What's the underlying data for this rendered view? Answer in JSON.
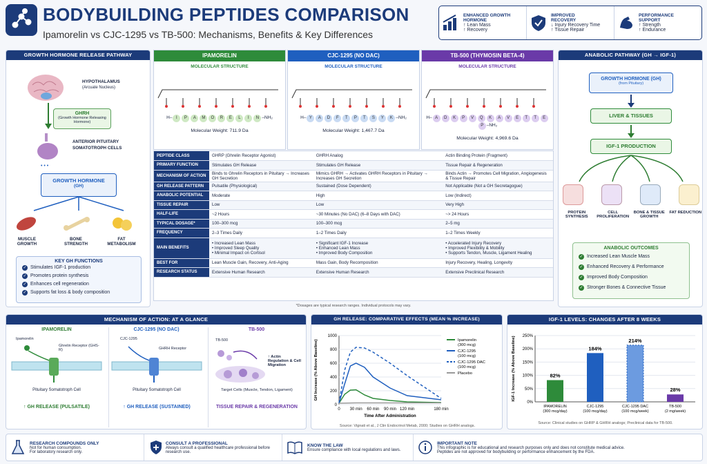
{
  "header": {
    "title": "BODYBUILDING PEPTIDES COMPARISON",
    "subtitle": "Ipamorelin vs CJC-1295 vs TB-500: Mechanisms, Benefits & Key Differences",
    "badges": [
      {
        "title": "ENHANCED GROWTH HORMONE",
        "l1": "↑ Lean Mass",
        "l2": "↑ Recovery"
      },
      {
        "title": "IMPROVED RECOVERY",
        "l1": "↓ Injury Recovery Time",
        "l2": "↑ Tissue Repair"
      },
      {
        "title": "PERFORMANCE SUPPORT",
        "l1": "↑ Strength",
        "l2": "↑ Endurance"
      }
    ]
  },
  "gh_pathway": {
    "title": "GROWTH HORMONE RELEASE PATHWAY",
    "hypothalamus": "HYPOTHALAMUS",
    "hypo_sub": "(Arcuate Nucleus)",
    "ghrh": "GHRH",
    "ghrh_sub": "(Growth Hormone Releasing Hormone)",
    "pituitary": "ANTERIOR PITUITARY SOMATOTROPH CELLS",
    "gh": "GROWTH HORMONE",
    "gh_sub": "(GH)",
    "muscle": "MUSCLE GROWTH",
    "bone": "BONE STRENGTH",
    "fat": "FAT METABOLISM",
    "fn_title": "KEY GH FUNCTIONS",
    "functions": [
      "Stimulates IGF-1 production",
      "Promotes protein synthesis",
      "Enhances cell regeneration",
      "Supports fat loss & body composition"
    ]
  },
  "peptides": [
    {
      "name": "IPAMORELIN",
      "struct_label": "MOLECULAR STRUCTURE",
      "seq": [
        "I",
        "P",
        "A",
        "M",
        "O",
        "R",
        "E",
        "L",
        "I",
        "N"
      ],
      "mw": "Molecular Weight: 711.9 Da",
      "color": "#2e8b3a",
      "pill": "#cfe9c4"
    },
    {
      "name": "CJC-1295 (NO DAC)",
      "struct_label": "MOLECULAR STRUCTURE",
      "seq": [
        "Y",
        "A",
        "D",
        "F",
        "T",
        "P",
        "T",
        "S",
        "Y",
        "K"
      ],
      "mw": "Molecular Weight: 1,467.7 Da",
      "color": "#1f5fbf",
      "pill": "#c9dbf3"
    },
    {
      "name": "TB-500 (THYMOSIN BETA-4)",
      "struct_label": "MOLECULAR STRUCTURE",
      "seq": [
        "A",
        "D",
        "K",
        "P",
        "V",
        "Q",
        "K",
        "A",
        "V",
        "E",
        "T",
        "T",
        "E",
        "P"
      ],
      "mw": "Molecular Weight: 4,969.6 Da",
      "color": "#6a3aa8",
      "pill": "#dccdf0"
    }
  ],
  "table": {
    "rows": [
      [
        "PEPTIDE CLASS",
        "GHRP (Ghrelin Receptor Agonist)",
        "GHRH Analog",
        "Actin Binding Protein (Fragment)"
      ],
      [
        "PRIMARY FUNCTION",
        "Stimulates GH Release",
        "Stimulates GH Release",
        "Tissue Repair & Regeneration"
      ],
      [
        "MECHANISM OF ACTION",
        "Binds to Ghrelin Receptors in Pituitary → Increases GH Secretion",
        "Mimics GHRH → Activates GHRH Receptors in Pituitary → Increases GH Secretion",
        "Binds Actin → Promotes Cell Migration, Angiogenesis & Tissue Repair"
      ],
      [
        "GH RELEASE PATTERN",
        "Pulsatile (Physiological)",
        "Sustained (Dose Dependent)",
        "Not Applicable (Not a GH Secretagogue)"
      ],
      [
        "ANABOLIC POTENTIAL",
        "Moderate",
        "High",
        "Low (Indirect)"
      ],
      [
        "TISSUE REPAIR",
        "Low",
        "Low",
        "Very High"
      ],
      [
        "HALF-LIFE",
        "~2 Hours",
        "~30 Minutes (No DAC) (6–8 Days with DAC)",
        "~> 24 Hours"
      ],
      [
        "TYPICAL DOSAGE*",
        "100–300 mcg",
        "100–300 mcg",
        "2–5 mg"
      ],
      [
        "FREQUENCY",
        "2–3 Times Daily",
        "1–2 Times Daily",
        "1–2 Times Weekly"
      ],
      [
        "MAIN BENEFITS",
        "• Increased Lean Mass\n• Improved Sleep Quality\n• Minimal Impact on Cortisol",
        "• Significant IGF-1 Increase\n• Enhanced Lean Mass\n• Improved Body Composition",
        "• Accelerated Injury Recovery\n• Improved Flexibility & Mobility\n• Supports Tendon, Muscle, Ligament Healing"
      ],
      [
        "BEST FOR",
        "Lean Muscle Gain, Recovery, Anti-Aging",
        "Mass Gain, Body Recomposition",
        "Injury Recovery, Healing, Longevity"
      ],
      [
        "RESEARCH STATUS",
        "Extensive Human Research",
        "Extensive Human Research",
        "Extensive Preclinical Research"
      ]
    ],
    "footnote": "*Dosages are typical research ranges. Individual protocols may vary."
  },
  "anabolic": {
    "title": "ANABOLIC PATHWAY (GH → IGF-1)",
    "gh": "GROWTH HORMONE (GH)",
    "gh_sub": "(from Pituitary)",
    "liver": "LIVER & TISSUES",
    "igf": "IGF-1 PRODUCTION",
    "effects": [
      "PROTEIN SYNTHESIS",
      "CELL PROLIFERATION",
      "BONE & TISSUE GROWTH",
      "FAT REDUCTION"
    ],
    "out_title": "ANABOLIC OUTCOMES",
    "outcomes": [
      "Increased Lean Muscle Mass",
      "Enhanced Recovery & Performance",
      "Improved Body Composition",
      "Stronger Bones & Connective Tissue"
    ]
  },
  "mechanism": {
    "title": "MECHANISM OF ACTION: AT A GLANCE",
    "ipa": {
      "name": "IPAMORELIN",
      "ligand": "Ipamorelin",
      "receptor": "Ghrelin Receptor (GHS-R)",
      "cell": "Pituitary Somatotroph Cell",
      "result": "↑ GH RELEASE (PULSATILE)"
    },
    "cjc": {
      "name": "CJC-1295 (NO DAC)",
      "ligand": "CJC-1295",
      "receptor": "GHRH Receptor",
      "cell": "Pituitary Somatotroph Cell",
      "result": "↑ GH RELEASE (SUSTAINED)"
    },
    "tb": {
      "name": "TB-500",
      "ligand": "TB-500",
      "effect": "↑ Actin Regulation & Cell Migration",
      "cells": "Target Cells (Muscle, Tendon, Ligament)",
      "result": "TISSUE REPAIR & REGENERATION"
    }
  },
  "chart_data": [
    {
      "type": "line",
      "title": "GH RELEASE: COMPARATIVE EFFECTS (MEAN % INCREASE)",
      "xlabel": "Time After Administration",
      "ylabel": "GH Increase (% Above Baseline)",
      "ylim": [
        0,
        1000
      ],
      "xticks": [
        "0",
        "30 min",
        "60 min",
        "90 min",
        "120 min",
        "180 min"
      ],
      "yticks": [
        "0",
        "200",
        "400",
        "600",
        "800",
        "1000"
      ],
      "series": [
        {
          "name": "Ipamorelin (300 mcg)",
          "color": "#2e8b3a",
          "dash": false,
          "points": [
            [
              0,
              20
            ],
            [
              10,
              150
            ],
            [
              20,
              210
            ],
            [
              30,
              215
            ],
            [
              45,
              140
            ],
            [
              60,
              90
            ],
            [
              90,
              60
            ],
            [
              120,
              40
            ],
            [
              180,
              30
            ]
          ]
        },
        {
          "name": "CJC-1295 (100 mcg)",
          "color": "#1f5fbf",
          "dash": false,
          "points": [
            [
              0,
              20
            ],
            [
              10,
              300
            ],
            [
              20,
              560
            ],
            [
              30,
              600
            ],
            [
              45,
              540
            ],
            [
              60,
              400
            ],
            [
              90,
              240
            ],
            [
              120,
              130
            ],
            [
              180,
              70
            ]
          ]
        },
        {
          "name": "CJC-1295 DAC (100 mcg)",
          "color": "#1f5fbf",
          "dash": true,
          "points": [
            [
              0,
              20
            ],
            [
              10,
              500
            ],
            [
              20,
              760
            ],
            [
              30,
              830
            ],
            [
              45,
              820
            ],
            [
              60,
              760
            ],
            [
              90,
              600
            ],
            [
              120,
              420
            ],
            [
              180,
              90
            ]
          ]
        },
        {
          "name": "Placebo",
          "color": "#999999",
          "dash": false,
          "points": [
            [
              0,
              20
            ],
            [
              30,
              25
            ],
            [
              60,
              25
            ],
            [
              90,
              25
            ],
            [
              120,
              25
            ],
            [
              180,
              25
            ]
          ]
        }
      ],
      "source": "Source: Vignati et al., J Clin Endocrinol Metab, 2000; Studies on GHRH analogs."
    },
    {
      "type": "bar",
      "title": "IGF-1 LEVELS: CHANGES AFTER 8 WEEKS",
      "ylabel": "IGF-1 Increase (% Above Baseline)",
      "ylim": [
        0,
        250
      ],
      "yticks": [
        "0%",
        "50%",
        "100%",
        "150%",
        "200%",
        "250%"
      ],
      "categories": [
        "IPAMORELIN (300 mcg/day)",
        "CJC-1295 (100 mcg/day)",
        "CJC-1295 DAC (100 mcg/week)",
        "TB-500 (2 mg/week)"
      ],
      "values": [
        82,
        184,
        214,
        28
      ],
      "labels": [
        "82%",
        "184%",
        "214%",
        "28%"
      ],
      "colors": [
        "#2e8b3a",
        "#1f5fbf",
        "#6c9be0",
        "#6a3aa8"
      ],
      "source": "Source: Clinical studies on GHRP & GHRH analogs; Preclinical data for TB-500."
    }
  ],
  "footer": [
    {
      "t": "RESEARCH COMPOUNDS ONLY",
      "d": "Not for human consumption.\nFor laboratory research only."
    },
    {
      "t": "CONSULT A PROFESSIONAL",
      "d": "Always consult a qualified healthcare professional before research use."
    },
    {
      "t": "KNOW THE LAW",
      "d": "Ensure compliance with local regulations and laws."
    },
    {
      "t": "IMPORTANT NOTE",
      "d": "This infographic is for educational and research purposes only and does not constitute medical advice.\nPeptides are not approved for bodybuilding or performance enhancement by the FDA."
    }
  ]
}
